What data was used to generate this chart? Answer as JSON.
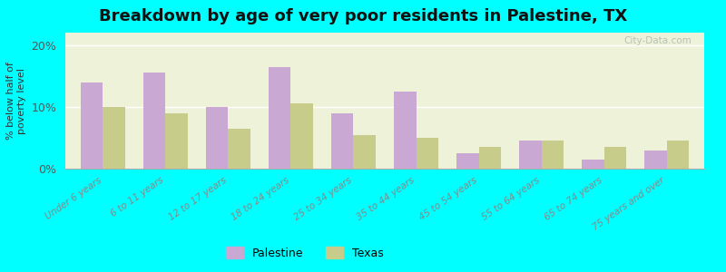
{
  "title": "Breakdown by age of very poor residents in Palestine, TX",
  "ylabel": "% below half of\npoverty level",
  "categories": [
    "Under 6 years",
    "6 to 11 years",
    "12 to 17 years",
    "18 to 24 years",
    "25 to 34 years",
    "35 to 44 years",
    "45 to 54 years",
    "55 to 64 years",
    "65 to 74 years",
    "75 years and over"
  ],
  "palestine_values": [
    14.0,
    15.5,
    10.0,
    16.5,
    9.0,
    12.5,
    2.5,
    4.5,
    1.5,
    3.0
  ],
  "texas_values": [
    10.0,
    9.0,
    6.5,
    10.5,
    5.5,
    5.0,
    3.5,
    4.5,
    3.5,
    4.5
  ],
  "palestine_color": "#c9a8d4",
  "texas_color": "#c8cc8a",
  "background_color": "#00ffff",
  "plot_bg_color": "#eef2d8",
  "ylim": [
    0,
    22
  ],
  "yticks": [
    0,
    10,
    20
  ],
  "ytick_labels": [
    "0%",
    "10%",
    "20%"
  ],
  "title_fontsize": 13,
  "legend_labels": [
    "Palestine",
    "Texas"
  ],
  "watermark": "City-Data.com"
}
